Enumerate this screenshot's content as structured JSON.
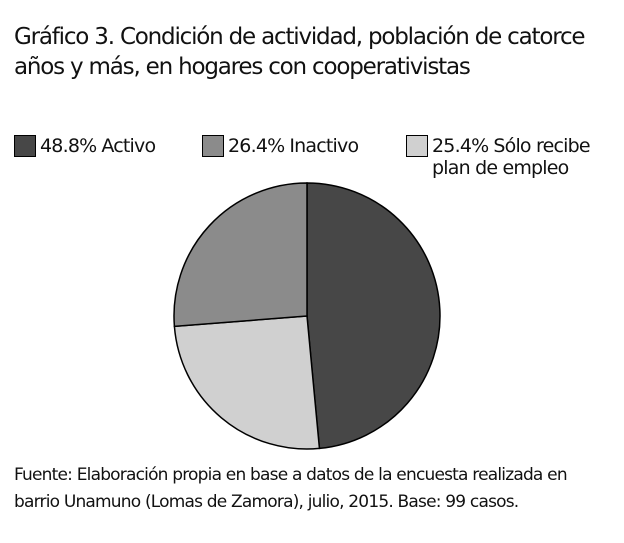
{
  "chart_data": {
    "type": "pie",
    "title": "Gráfico 3. Condición de actividad, población de catorce años y más, en hogares con cooperativistas",
    "categories": [
      "Activo",
      "Inactivo",
      "Sólo recibe plan de empleo"
    ],
    "values": [
      48.8,
      26.4,
      25.4
    ],
    "value_labels": [
      "48.8%",
      "26.4%",
      "25.4%"
    ],
    "colors": [
      "#474747",
      "#8b8b8b",
      "#d0d0d0"
    ],
    "source": "Fuente: Elaboración propia en base a datos de la encuesta realizada en barrio Unamuno (Lomas de Zamora), julio, 2015. Base: 99 casos."
  }
}
